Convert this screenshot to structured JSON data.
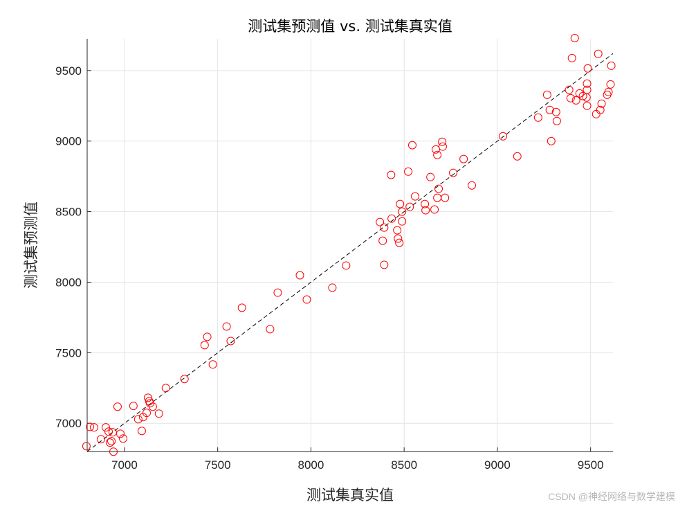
{
  "chart_data": {
    "type": "scatter",
    "title": "测试集预测值 vs. 测试集真实值",
    "xlabel": "测试集真实值",
    "ylabel": "测试集预测值",
    "xlim": [
      6800,
      9620
    ],
    "ylim": [
      6800,
      9725
    ],
    "xticks": [
      7000,
      7500,
      8000,
      8500,
      9000,
      9500
    ],
    "yticks": [
      7000,
      7500,
      8000,
      8500,
      9000,
      9500
    ],
    "grid": true,
    "marker": "open-circle",
    "marker_color": "#ff0000",
    "reference_line": {
      "style": "dashed",
      "color": "#000000",
      "equation": "y = x"
    },
    "points": [
      [
        6796,
        6838
      ],
      [
        6815,
        6975
      ],
      [
        6837,
        6971
      ],
      [
        6874,
        6887
      ],
      [
        6900,
        6971
      ],
      [
        6915,
        6941
      ],
      [
        6937,
        6936
      ],
      [
        6922,
        6863
      ],
      [
        6930,
        6873
      ],
      [
        6941,
        6799
      ],
      [
        6963,
        7118
      ],
      [
        6978,
        6926
      ],
      [
        6993,
        6892
      ],
      [
        7048,
        7123
      ],
      [
        7074,
        7029
      ],
      [
        7100,
        7044
      ],
      [
        7093,
        6946
      ],
      [
        7119,
        7074
      ],
      [
        7126,
        7181
      ],
      [
        7133,
        7157
      ],
      [
        7137,
        7142
      ],
      [
        7152,
        7118
      ],
      [
        7185,
        7069
      ],
      [
        7222,
        7250
      ],
      [
        7322,
        7314
      ],
      [
        7430,
        7554
      ],
      [
        7444,
        7613
      ],
      [
        7474,
        7417
      ],
      [
        7548,
        7686
      ],
      [
        7570,
        7583
      ],
      [
        7630,
        7819
      ],
      [
        7781,
        7667
      ],
      [
        7822,
        7926
      ],
      [
        7941,
        8049
      ],
      [
        7978,
        7877
      ],
      [
        8115,
        7961
      ],
      [
        8189,
        8118
      ],
      [
        8370,
        8426
      ],
      [
        8385,
        8294
      ],
      [
        8393,
        8387
      ],
      [
        8393,
        8123
      ],
      [
        8430,
        8760
      ],
      [
        8433,
        8451
      ],
      [
        8463,
        8368
      ],
      [
        8467,
        8309
      ],
      [
        8474,
        8279
      ],
      [
        8478,
        8554
      ],
      [
        8489,
        8431
      ],
      [
        8489,
        8500
      ],
      [
        8522,
        8784
      ],
      [
        8530,
        8534
      ],
      [
        8544,
        8971
      ],
      [
        8559,
        8608
      ],
      [
        8611,
        8554
      ],
      [
        8615,
        8510
      ],
      [
        8641,
        8745
      ],
      [
        8663,
        8515
      ],
      [
        8670,
        8941
      ],
      [
        8678,
        8902
      ],
      [
        8678,
        8598
      ],
      [
        8685,
        8662
      ],
      [
        8704,
        8995
      ],
      [
        8707,
        8961
      ],
      [
        8719,
        8598
      ],
      [
        8763,
        8775
      ],
      [
        8819,
        8873
      ],
      [
        8863,
        8686
      ],
      [
        9030,
        9034
      ],
      [
        9107,
        8892
      ],
      [
        9219,
        9167
      ],
      [
        9267,
        9328
      ],
      [
        9281,
        9221
      ],
      [
        9289,
        9000
      ],
      [
        9315,
        9206
      ],
      [
        9319,
        9142
      ],
      [
        9385,
        9363
      ],
      [
        9393,
        9304
      ],
      [
        9400,
        9588
      ],
      [
        9415,
        9730
      ],
      [
        9422,
        9289
      ],
      [
        9441,
        9338
      ],
      [
        9459,
        9319
      ],
      [
        9478,
        9309
      ],
      [
        9481,
        9407
      ],
      [
        9481,
        9363
      ],
      [
        9485,
        9515
      ],
      [
        9481,
        9250
      ],
      [
        9530,
        9191
      ],
      [
        9541,
        9618
      ],
      [
        9552,
        9221
      ],
      [
        9559,
        9265
      ],
      [
        9589,
        9328
      ],
      [
        9596,
        9348
      ],
      [
        9607,
        9402
      ],
      [
        9611,
        9534
      ]
    ]
  },
  "watermark": "CSDN @神经网络与数学建模"
}
